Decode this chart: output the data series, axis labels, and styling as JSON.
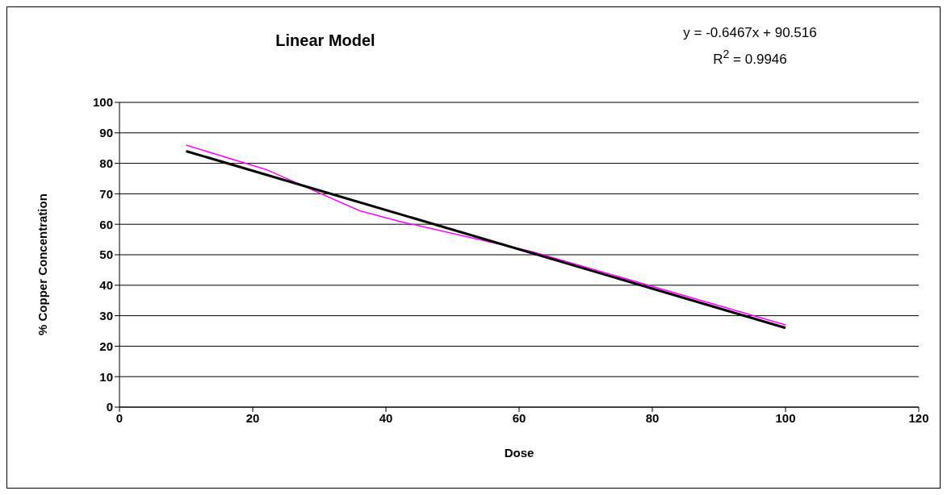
{
  "chart_data": {
    "type": "line",
    "title": "Linear Model",
    "xlabel": "Dose",
    "ylabel": "% Copper Concentration",
    "annotations": [
      "y = -0.6467x + 90.516",
      "R$^{2}$ = 0.9946"
    ],
    "series": [
      {
        "color": "#ff00ff",
        "x": [
          10,
          22,
          36,
          42,
          62,
          100
        ],
        "values": [
          86,
          78,
          64.5,
          61,
          51,
          27
        ]
      },
      {
        "type": "line",
        "color": "#000000",
        "x": [
          10,
          100
        ],
        "values": [
          84,
          26
        ]
      }
    ],
    "xlim": [
      0,
      120
    ],
    "xticks": [
      0,
      20,
      40,
      60,
      80,
      100,
      120
    ],
    "ylim": [
      0,
      100
    ],
    "yticks": [
      0,
      10,
      20,
      30,
      40,
      50,
      60,
      70,
      80,
      90,
      100
    ],
    "grid": "y",
    "marker": "none",
    "line_style": "solid"
  }
}
